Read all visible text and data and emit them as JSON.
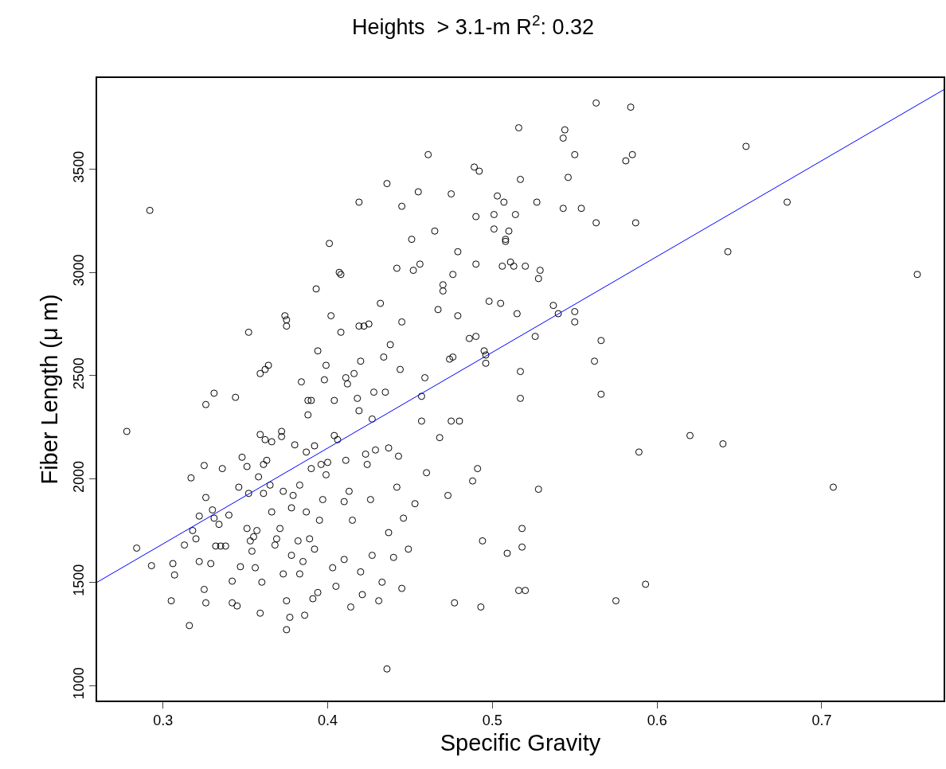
{
  "chart_data": {
    "type": "scatter",
    "title": "Heights  > 3.1-m R$^{2}$: 0.32",
    "xlabel": "Specific Gravity",
    "ylabel": "Fiber Length (μ m)",
    "xlim": [
      0.26,
      0.774
    ],
    "ylim": [
      927,
      3941
    ],
    "xticks": [
      0.3,
      0.4,
      0.5,
      0.6,
      0.7
    ],
    "yticks": [
      1000,
      1500,
      2000,
      2500,
      3000,
      3500
    ],
    "grid": false,
    "marker": "circle",
    "series": [
      {
        "color": "#000000",
        "x": [
          0.278,
          0.284,
          0.292,
          0.293,
          0.305,
          0.306,
          0.307,
          0.313,
          0.316,
          0.317,
          0.318,
          0.32,
          0.322,
          0.322,
          0.325,
          0.325,
          0.326,
          0.326,
          0.326,
          0.329,
          0.33,
          0.331,
          0.331,
          0.332,
          0.334,
          0.335,
          0.336,
          0.338,
          0.34,
          0.342,
          0.342,
          0.344,
          0.345,
          0.346,
          0.347,
          0.348,
          0.351,
          0.351,
          0.352,
          0.352,
          0.353,
          0.354,
          0.355,
          0.356,
          0.357,
          0.358,
          0.359,
          0.359,
          0.359,
          0.36,
          0.361,
          0.361,
          0.362,
          0.362,
          0.363,
          0.364,
          0.365,
          0.366,
          0.366,
          0.368,
          0.369,
          0.371,
          0.372,
          0.372,
          0.373,
          0.373,
          0.374,
          0.375,
          0.375,
          0.375,
          0.375,
          0.377,
          0.378,
          0.378,
          0.379,
          0.38,
          0.382,
          0.383,
          0.383,
          0.384,
          0.385,
          0.386,
          0.387,
          0.387,
          0.388,
          0.388,
          0.389,
          0.39,
          0.39,
          0.391,
          0.392,
          0.392,
          0.393,
          0.394,
          0.394,
          0.395,
          0.396,
          0.397,
          0.398,
          0.399,
          0.399,
          0.4,
          0.401,
          0.402,
          0.403,
          0.404,
          0.404,
          0.405,
          0.406,
          0.407,
          0.408,
          0.408,
          0.41,
          0.41,
          0.411,
          0.411,
          0.412,
          0.413,
          0.414,
          0.415,
          0.416,
          0.418,
          0.419,
          0.419,
          0.419,
          0.42,
          0.42,
          0.421,
          0.422,
          0.423,
          0.424,
          0.425,
          0.426,
          0.427,
          0.427,
          0.428,
          0.429,
          0.431,
          0.432,
          0.433,
          0.434,
          0.435,
          0.436,
          0.436,
          0.437,
          0.437,
          0.438,
          0.44,
          0.442,
          0.442,
          0.443,
          0.444,
          0.445,
          0.445,
          0.445,
          0.446,
          0.449,
          0.451,
          0.452,
          0.453,
          0.455,
          0.456,
          0.457,
          0.457,
          0.459,
          0.46,
          0.461,
          0.465,
          0.467,
          0.468,
          0.47,
          0.47,
          0.473,
          0.474,
          0.475,
          0.475,
          0.476,
          0.476,
          0.477,
          0.479,
          0.479,
          0.48,
          0.486,
          0.488,
          0.489,
          0.49,
          0.49,
          0.49,
          0.491,
          0.492,
          0.493,
          0.494,
          0.495,
          0.496,
          0.496,
          0.498,
          0.501,
          0.501,
          0.503,
          0.505,
          0.506,
          0.507,
          0.508,
          0.508,
          0.509,
          0.51,
          0.511,
          0.513,
          0.514,
          0.515,
          0.516,
          0.516,
          0.517,
          0.517,
          0.517,
          0.518,
          0.518,
          0.52,
          0.52,
          0.526,
          0.527,
          0.528,
          0.528,
          0.529,
          0.537,
          0.54,
          0.543,
          0.543,
          0.544,
          0.546,
          0.55,
          0.55,
          0.55,
          0.554,
          0.562,
          0.563,
          0.563,
          0.566,
          0.566,
          0.575,
          0.581,
          0.584,
          0.585,
          0.587,
          0.589,
          0.593,
          0.62,
          0.64,
          0.643,
          0.654,
          0.679,
          0.707,
          0.758
        ],
        "values": [
          2230,
          1665,
          3300,
          1580,
          1410,
          1590,
          1535,
          1680,
          1290,
          2005,
          1750,
          1710,
          1820,
          1600,
          2065,
          1465,
          1400,
          2360,
          1910,
          1590,
          1850,
          1810,
          2415,
          1675,
          1780,
          1675,
          2050,
          1675,
          1825,
          1400,
          1505,
          2395,
          1385,
          1960,
          1575,
          2105,
          1760,
          2060,
          2710,
          1930,
          1700,
          1650,
          1720,
          1570,
          1750,
          2010,
          1350,
          2510,
          2215,
          1500,
          2070,
          1930,
          2530,
          2190,
          2090,
          2550,
          1970,
          1840,
          2180,
          1680,
          1710,
          1760,
          2230,
          2205,
          1940,
          1540,
          2790,
          2770,
          2740,
          1410,
          1270,
          1330,
          1860,
          1630,
          1920,
          2165,
          1700,
          1540,
          1970,
          2470,
          1600,
          1340,
          2130,
          1840,
          2380,
          2310,
          1710,
          2050,
          2380,
          1420,
          2160,
          1660,
          2920,
          2620,
          1450,
          1800,
          2070,
          1900,
          2480,
          2550,
          2020,
          2080,
          3140,
          2790,
          1570,
          2380,
          2210,
          1480,
          2190,
          3000,
          2990,
          2710,
          1890,
          1610,
          2090,
          2490,
          2460,
          1940,
          1380,
          1800,
          2510,
          2390,
          3340,
          2740,
          2330,
          1550,
          2570,
          1440,
          2740,
          2120,
          2070,
          2750,
          1900,
          1630,
          2290,
          2420,
          2140,
          1410,
          2850,
          1500,
          2590,
          2420,
          3430,
          1080,
          1740,
          2150,
          2650,
          1620,
          1960,
          3020,
          2110,
          2530,
          2760,
          3320,
          1470,
          1810,
          1660,
          3160,
          3010,
          1880,
          3390,
          3040,
          2280,
          2400,
          2490,
          2030,
          3570,
          3200,
          2820,
          2200,
          2910,
          2940,
          1920,
          2580,
          3380,
          2280,
          2990,
          2590,
          1400,
          3100,
          2790,
          2280,
          2680,
          1990,
          3510,
          3270,
          3040,
          2690,
          2050,
          3490,
          1380,
          1700,
          2620,
          2600,
          2560,
          2860,
          3280,
          3210,
          3370,
          2850,
          3030,
          3340,
          3160,
          3150,
          1640,
          3200,
          3050,
          3030,
          3280,
          2800,
          1460,
          3700,
          3450,
          2520,
          2390,
          1760,
          1670,
          1460,
          3030,
          2690,
          3340,
          1950,
          2970,
          3010,
          2840,
          2800,
          3650,
          3310,
          3690,
          3460,
          3570,
          2760,
          2810,
          3310,
          2570,
          3820,
          3240,
          2670,
          2410,
          1410,
          3540,
          3800,
          3570,
          3240,
          2130,
          1490,
          2210,
          2170,
          3100,
          3610,
          3340,
          1960,
          2990
        ]
      },
      {
        "type": "line",
        "color": "#0000ff",
        "line_style": "solid",
        "marker": "none",
        "x": [
          0.26,
          0.774
        ],
        "values": [
          1500,
          3884
        ]
      }
    ]
  }
}
